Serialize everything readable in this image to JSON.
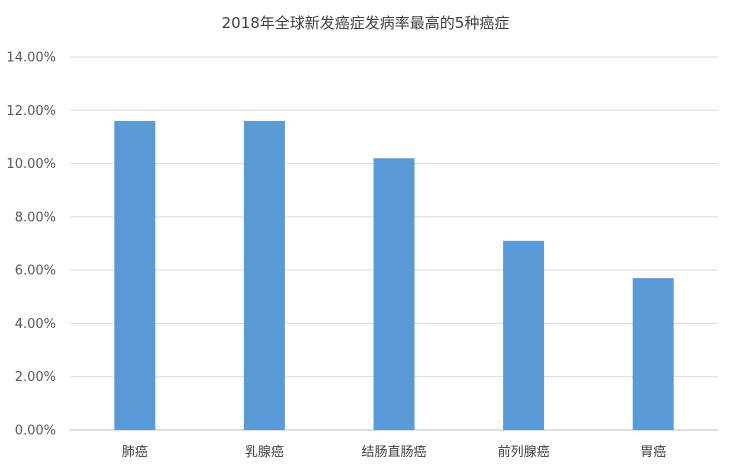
{
  "chart_data": {
    "type": "bar",
    "title": "2018年全球新发癌症发病率最高的5种癌症",
    "categories": [
      "肺癌",
      "乳腺癌",
      "结肠直肠癌",
      "前列腺癌",
      "胃癌"
    ],
    "values": [
      11.6,
      11.6,
      10.2,
      7.1,
      5.7
    ],
    "ylim": [
      0,
      14
    ],
    "ytick_step": 2,
    "ytick_labels": [
      "0.00%",
      "2.00%",
      "4.00%",
      "6.00%",
      "8.00%",
      "10.00%",
      "12.00%",
      "14.00%"
    ],
    "xlabel": "",
    "ylabel": "",
    "grid": true,
    "legend": "none",
    "bar_color": "#5b9bd5"
  }
}
